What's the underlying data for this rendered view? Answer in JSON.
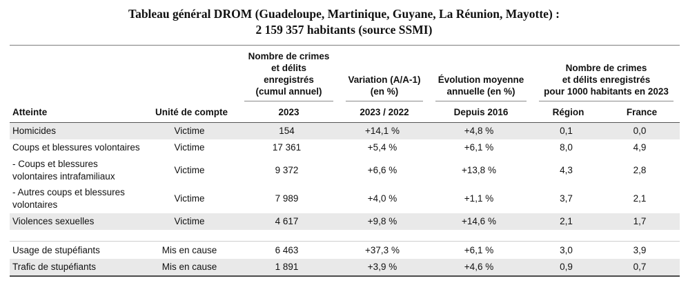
{
  "title": {
    "line1": "Tableau général DROM (Guadeloupe, Martinique, Guyane, La Réunion, Mayotte) :",
    "line2": "2 159 357 habitants (source SSMI)"
  },
  "table": {
    "groups": {
      "cumul": "Nombre de crimes\net délits enregistrés\n(cumul annuel)",
      "variation": "Variation (A/A-1)\n(en %)",
      "evolution": "Évolution moyenne\nannuelle (en %)",
      "per1000": "Nombre de crimes\net délits enregistrés\npour 1000 habitants en 2023"
    },
    "columns": {
      "atteinte": "Atteinte",
      "unite": "Unité de compte",
      "sub_2023": "2023",
      "sub_2023_2022": "2023 / 2022",
      "sub_depuis_2016": "Depuis 2016",
      "sub_region": "Région",
      "sub_france": "France"
    },
    "rows": [
      {
        "atteinte": "Homicides",
        "unite": "Victime",
        "cumul": "154",
        "variation": "+14,1 %",
        "evolution": "+4,8 %",
        "region": "0,1",
        "france": "0,0",
        "shaded": true
      },
      {
        "atteinte": "Coups et blessures volontaires",
        "unite": "Victime",
        "cumul": "17 361",
        "variation": "+5,4 %",
        "evolution": "+6,1 %",
        "region": "8,0",
        "france": "4,9",
        "shaded": false
      },
      {
        "atteinte": "- Coups et blessures volontaires intrafamiliaux",
        "unite": "Victime",
        "cumul": "9 372",
        "variation": "+6,6 %",
        "evolution": "+13,8 %",
        "region": "4,3",
        "france": "2,8",
        "shaded": false
      },
      {
        "atteinte": "- Autres coups et blessures volontaires",
        "unite": "Victime",
        "cumul": "7 989",
        "variation": "+4,0 %",
        "evolution": "+1,1 %",
        "region": "3,7",
        "france": "2,1",
        "shaded": false
      },
      {
        "atteinte": "Violences sexuelles",
        "unite": "Victime",
        "cumul": "4 617",
        "variation": "+9,8 %",
        "evolution": "+14,6 %",
        "region": "2,1",
        "france": "1,7",
        "shaded": true
      },
      {
        "type": "spacer"
      },
      {
        "atteinte": "Usage de stupéfiants",
        "unite": "Mis en cause",
        "cumul": "6 463",
        "variation": "+37,3 %",
        "evolution": "+6,1 %",
        "region": "3,0",
        "france": "3,9",
        "shaded": false
      },
      {
        "atteinte": "Trafic de stupéfiants",
        "unite": "Mis en cause",
        "cumul": "1 891",
        "variation": "+3,9 %",
        "evolution": "+4,6 %",
        "region": "0,9",
        "france": "0,7",
        "shaded": true
      }
    ]
  },
  "colors": {
    "row_shade": "#e9e9e9",
    "rule_dark": "#4a4a4a",
    "rule_mid": "#7d7d7d",
    "rule_light": "#cfcfcf",
    "text": "#111111"
  }
}
